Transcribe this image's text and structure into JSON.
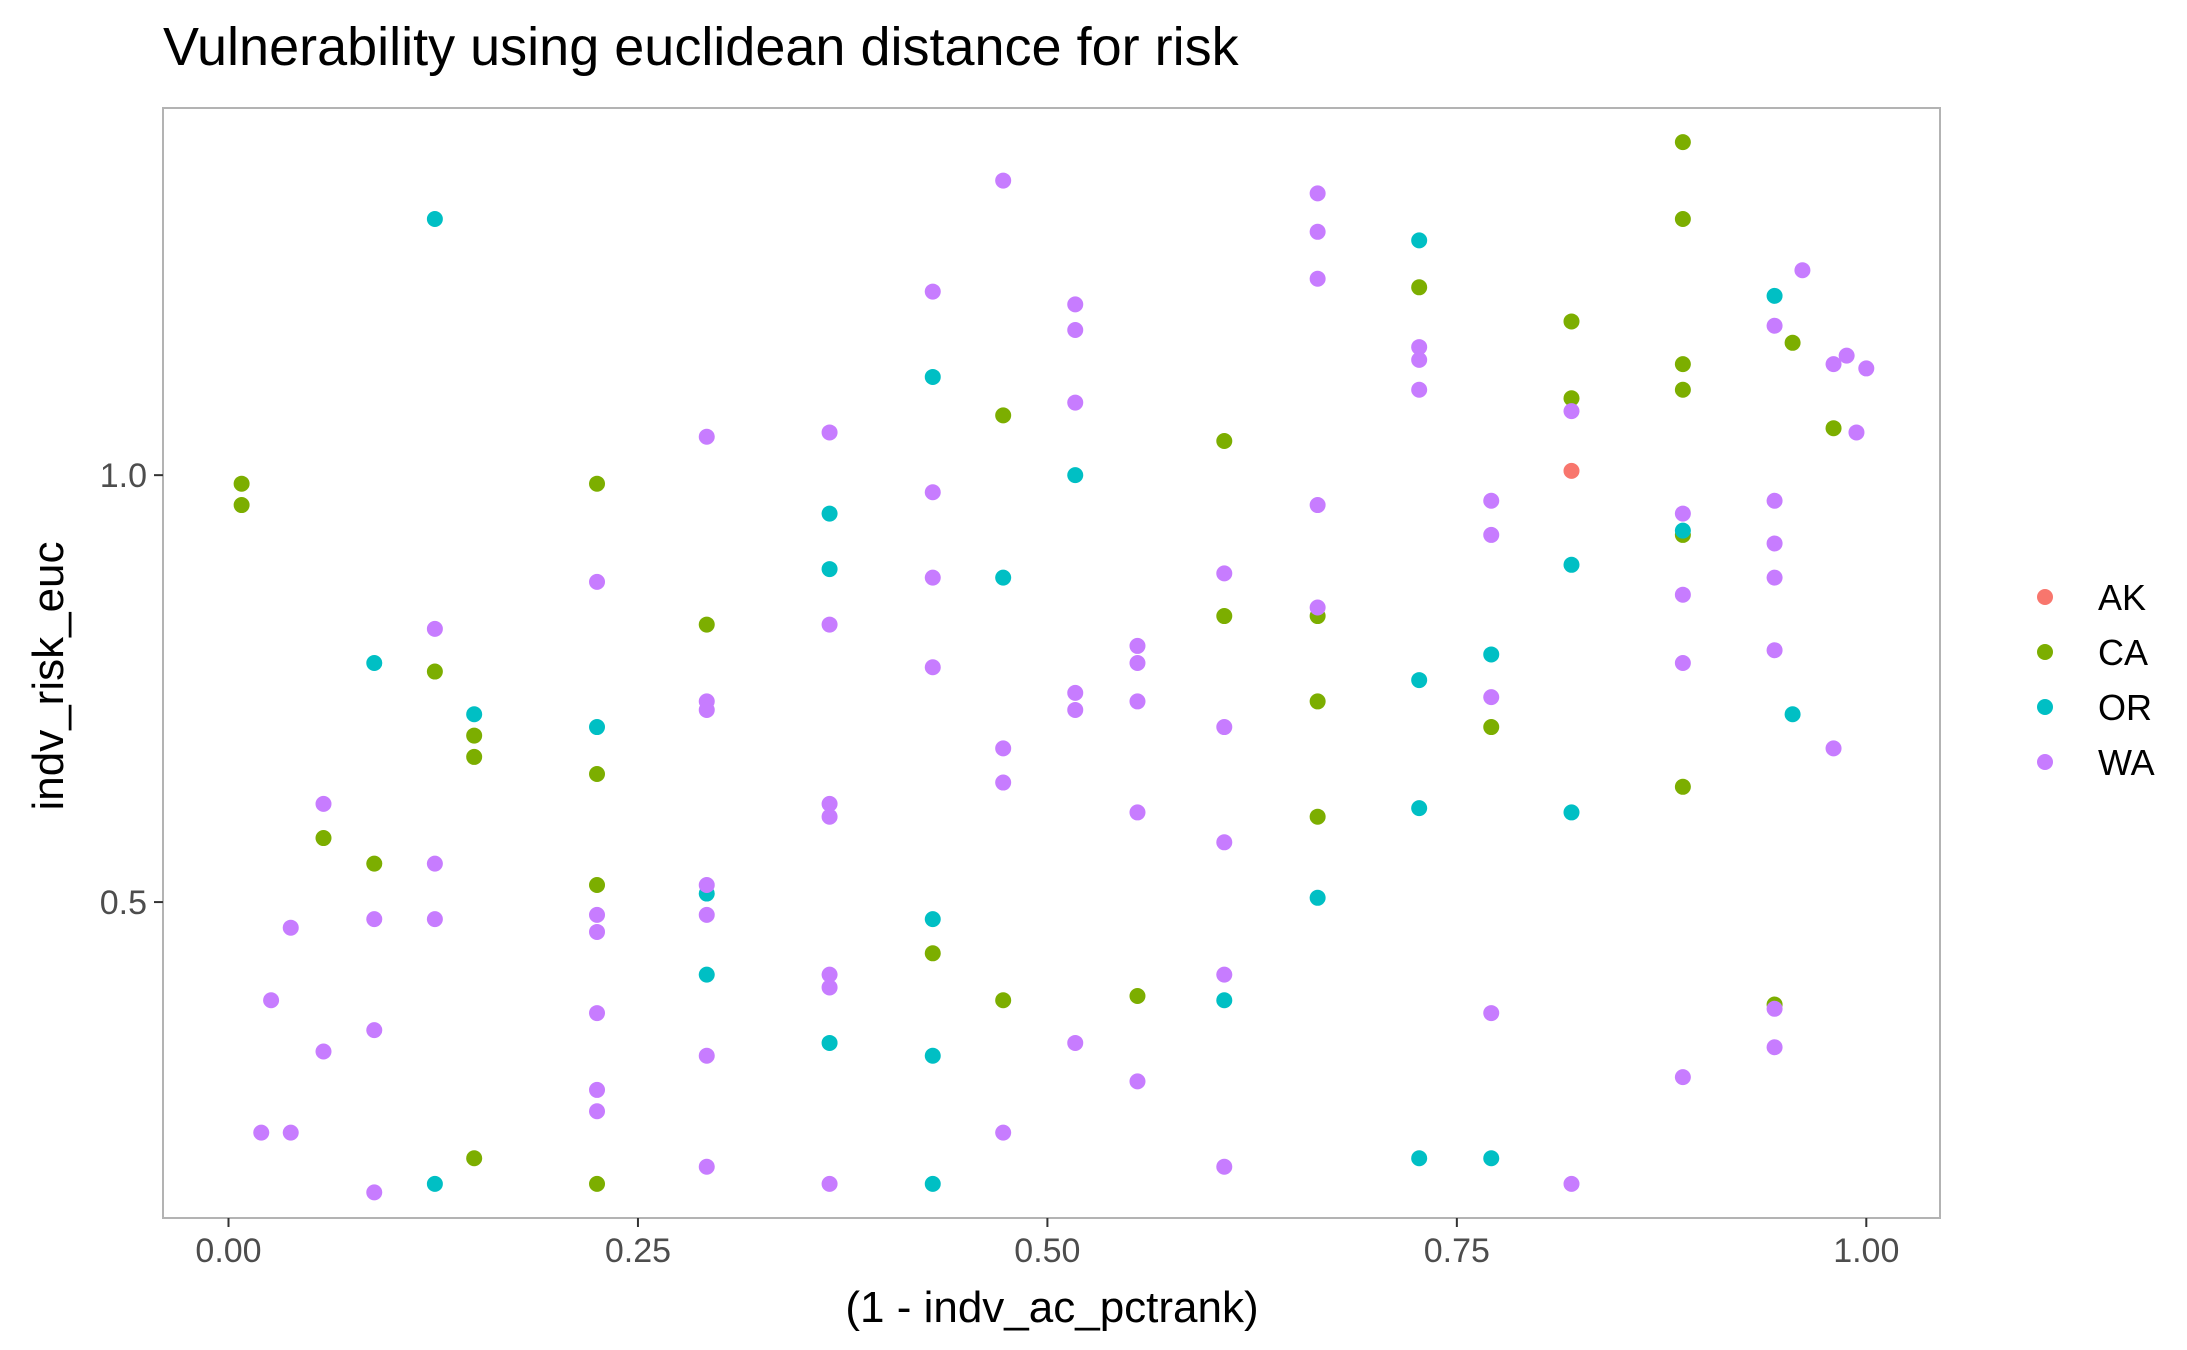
{
  "chart_data": {
    "type": "scatter",
    "title": "Vulnerability using euclidean distance for risk",
    "xlabel": "(1 - indv_ac_pctrank)",
    "ylabel": "indv_risk_euc",
    "xlim": [
      -0.04,
      1.045
    ],
    "ylim": [
      0.13,
      1.43
    ],
    "x_ticks": [
      0.0,
      0.25,
      0.5,
      0.75,
      1.0
    ],
    "x_tick_labels": [
      "0.00",
      "0.25",
      "0.50",
      "0.75",
      "1.00"
    ],
    "y_ticks": [
      0.5,
      1.0
    ],
    "y_tick_labels": [
      "0.5",
      "1.0"
    ],
    "grid": false,
    "legend_position": "right",
    "series": [
      {
        "name": "AK",
        "color": "#F8766D",
        "points": [
          [
            0.82,
            1.005
          ]
        ]
      },
      {
        "name": "CA",
        "color": "#7CAE00",
        "points": [
          [
            0.008,
            0.99
          ],
          [
            0.008,
            0.965
          ],
          [
            0.058,
            0.575
          ],
          [
            0.089,
            0.545
          ],
          [
            0.126,
            0.77
          ],
          [
            0.15,
            0.695
          ],
          [
            0.15,
            0.67
          ],
          [
            0.15,
            0.2
          ],
          [
            0.225,
            0.99
          ],
          [
            0.225,
            0.65
          ],
          [
            0.225,
            0.52
          ],
          [
            0.225,
            0.17
          ],
          [
            0.292,
            0.825
          ],
          [
            0.43,
            0.44
          ],
          [
            0.473,
            1.07
          ],
          [
            0.473,
            0.385
          ],
          [
            0.555,
            0.39
          ],
          [
            0.608,
            1.04
          ],
          [
            0.608,
            0.835
          ],
          [
            0.665,
            0.835
          ],
          [
            0.665,
            0.735
          ],
          [
            0.665,
            0.6
          ],
          [
            0.727,
            1.22
          ],
          [
            0.771,
            0.705
          ],
          [
            0.82,
            1.18
          ],
          [
            0.82,
            1.09
          ],
          [
            0.888,
            1.39
          ],
          [
            0.888,
            1.3
          ],
          [
            0.888,
            1.13
          ],
          [
            0.888,
            1.1
          ],
          [
            0.888,
            0.93
          ],
          [
            0.888,
            0.635
          ],
          [
            0.944,
            0.38
          ],
          [
            0.955,
            1.155
          ],
          [
            0.98,
            1.055
          ]
        ]
      },
      {
        "name": "OR",
        "color": "#00BFC4",
        "points": [
          [
            0.089,
            0.78
          ],
          [
            0.126,
            1.3
          ],
          [
            0.126,
            0.17
          ],
          [
            0.15,
            0.72
          ],
          [
            0.225,
            0.705
          ],
          [
            0.292,
            0.51
          ],
          [
            0.292,
            0.415
          ],
          [
            0.367,
            0.955
          ],
          [
            0.367,
            0.89
          ],
          [
            0.367,
            0.335
          ],
          [
            0.43,
            1.115
          ],
          [
            0.43,
            0.48
          ],
          [
            0.43,
            0.32
          ],
          [
            0.43,
            0.17
          ],
          [
            0.473,
            0.88
          ],
          [
            0.517,
            1.0
          ],
          [
            0.608,
            0.385
          ],
          [
            0.665,
            0.505
          ],
          [
            0.727,
            1.275
          ],
          [
            0.727,
            0.76
          ],
          [
            0.727,
            0.61
          ],
          [
            0.727,
            0.2
          ],
          [
            0.771,
            0.79
          ],
          [
            0.771,
            0.2
          ],
          [
            0.82,
            0.895
          ],
          [
            0.82,
            0.605
          ],
          [
            0.888,
            0.935
          ],
          [
            0.944,
            1.21
          ],
          [
            0.955,
            0.72
          ]
        ]
      },
      {
        "name": "WA",
        "color": "#C77CFF",
        "points": [
          [
            0.02,
            0.23
          ],
          [
            0.026,
            0.385
          ],
          [
            0.038,
            0.47
          ],
          [
            0.038,
            0.23
          ],
          [
            0.058,
            0.615
          ],
          [
            0.058,
            0.325
          ],
          [
            0.089,
            0.48
          ],
          [
            0.089,
            0.35
          ],
          [
            0.089,
            0.16
          ],
          [
            0.126,
            0.82
          ],
          [
            0.126,
            0.545
          ],
          [
            0.126,
            0.48
          ],
          [
            0.225,
            0.875
          ],
          [
            0.225,
            0.485
          ],
          [
            0.225,
            0.465
          ],
          [
            0.225,
            0.37
          ],
          [
            0.225,
            0.28
          ],
          [
            0.225,
            0.255
          ],
          [
            0.292,
            1.045
          ],
          [
            0.292,
            0.735
          ],
          [
            0.292,
            0.725
          ],
          [
            0.292,
            0.52
          ],
          [
            0.292,
            0.485
          ],
          [
            0.292,
            0.32
          ],
          [
            0.292,
            0.19
          ],
          [
            0.367,
            1.05
          ],
          [
            0.367,
            0.825
          ],
          [
            0.367,
            0.615
          ],
          [
            0.367,
            0.6
          ],
          [
            0.367,
            0.415
          ],
          [
            0.367,
            0.4
          ],
          [
            0.367,
            0.17
          ],
          [
            0.43,
            1.215
          ],
          [
            0.43,
            0.98
          ],
          [
            0.43,
            0.88
          ],
          [
            0.43,
            0.775
          ],
          [
            0.473,
            1.345
          ],
          [
            0.473,
            0.68
          ],
          [
            0.473,
            0.64
          ],
          [
            0.473,
            0.23
          ],
          [
            0.517,
            1.2
          ],
          [
            0.517,
            1.17
          ],
          [
            0.517,
            1.085
          ],
          [
            0.517,
            0.745
          ],
          [
            0.517,
            0.725
          ],
          [
            0.517,
            0.335
          ],
          [
            0.555,
            0.8
          ],
          [
            0.555,
            0.78
          ],
          [
            0.555,
            0.735
          ],
          [
            0.555,
            0.605
          ],
          [
            0.555,
            0.29
          ],
          [
            0.608,
            0.885
          ],
          [
            0.608,
            0.705
          ],
          [
            0.608,
            0.57
          ],
          [
            0.608,
            0.415
          ],
          [
            0.608,
            0.19
          ],
          [
            0.665,
            1.33
          ],
          [
            0.665,
            1.285
          ],
          [
            0.665,
            1.23
          ],
          [
            0.665,
            0.965
          ],
          [
            0.665,
            0.845
          ],
          [
            0.727,
            1.15
          ],
          [
            0.727,
            1.135
          ],
          [
            0.727,
            1.1
          ],
          [
            0.771,
            0.97
          ],
          [
            0.771,
            0.93
          ],
          [
            0.771,
            0.74
          ],
          [
            0.771,
            0.37
          ],
          [
            0.82,
            1.075
          ],
          [
            0.82,
            0.17
          ],
          [
            0.888,
            0.955
          ],
          [
            0.888,
            0.86
          ],
          [
            0.888,
            0.78
          ],
          [
            0.888,
            0.295
          ],
          [
            0.944,
            1.175
          ],
          [
            0.944,
            0.97
          ],
          [
            0.944,
            0.92
          ],
          [
            0.944,
            0.88
          ],
          [
            0.944,
            0.795
          ],
          [
            0.944,
            0.375
          ],
          [
            0.944,
            0.33
          ],
          [
            0.961,
            1.24
          ],
          [
            0.98,
            1.13
          ],
          [
            0.98,
            0.68
          ],
          [
            0.988,
            1.14
          ],
          [
            0.994,
            1.05
          ],
          [
            1.0,
            1.125
          ]
        ]
      }
    ]
  }
}
